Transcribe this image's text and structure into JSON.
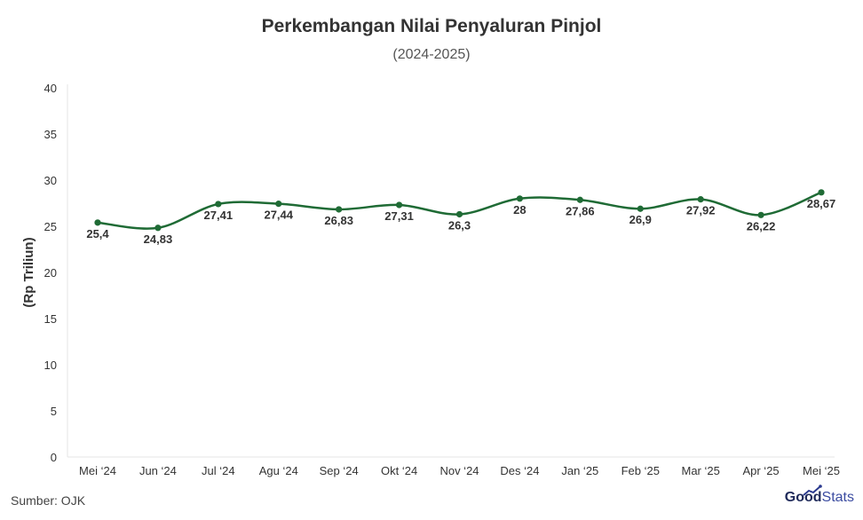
{
  "chart_data": {
    "type": "line",
    "title": "Perkembangan Nilai Penyaluran Pinjol",
    "subtitle": "(2024-2025)",
    "ylabel": "(Rp Triliun)",
    "xlabel": "",
    "categories": [
      "Mei ‘24",
      "Jun ‘24",
      "Jul ‘24",
      "Agu ‘24",
      "Sep ‘24",
      "Okt ‘24",
      "Nov ‘24",
      "Des ‘24",
      "Jan ‘25",
      "Feb ‘25",
      "Mar ‘25",
      "Apr ‘25",
      "Mei ‘25"
    ],
    "values": [
      25.4,
      24.83,
      27.41,
      27.44,
      26.83,
      27.31,
      26.3,
      28,
      27.86,
      26.9,
      27.92,
      26.22,
      28.67
    ],
    "value_labels": [
      "25,4",
      "24,83",
      "27,41",
      "27,44",
      "26,83",
      "27,31",
      "26,3",
      "28",
      "27,86",
      "26,9",
      "27,92",
      "26,22",
      "28,67"
    ],
    "ylim": [
      0,
      40
    ],
    "yticks": [
      0,
      5,
      10,
      15,
      20,
      25,
      30,
      35,
      40
    ],
    "grid": false,
    "line_color": "#1f6b35",
    "label_color": "#333333"
  },
  "footer": {
    "source": "Sumber: OJK",
    "logo_bold": "Good",
    "logo_light": "Stats"
  }
}
